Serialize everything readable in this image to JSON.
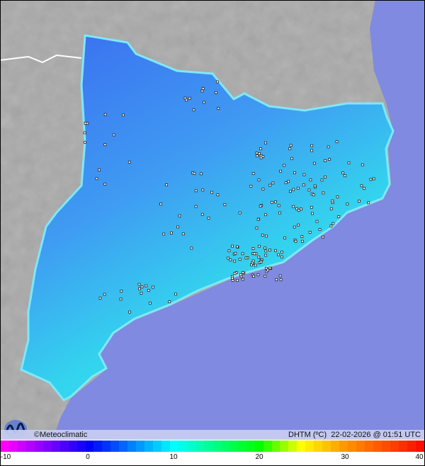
{
  "map": {
    "region": "Catalunya",
    "colors": {
      "sea": "#7f8ae0",
      "terrain": "#a8a8a8",
      "border": "#ffffff",
      "station": "#ffffff"
    }
  },
  "infobar": {
    "brand": "©Meteoclimatic",
    "variable": "DHTM (ºC)",
    "datetime": "22-02-2026 @ 01:51 UTC"
  },
  "legend": {
    "unit": "ºC",
    "min": -10,
    "max": 40,
    "tick_labels": [
      "-10",
      "0",
      "10",
      "20",
      "30",
      "40"
    ],
    "color_stops": [
      {
        "value": -10,
        "color": "#ff00ff"
      },
      {
        "value": -5,
        "color": "#8000ff"
      },
      {
        "value": 0,
        "color": "#0000ff"
      },
      {
        "value": 5,
        "color": "#0080ff"
      },
      {
        "value": 10,
        "color": "#00ffff"
      },
      {
        "value": 20,
        "color": "#00ff00"
      },
      {
        "value": 25,
        "color": "#ffff00"
      },
      {
        "value": 30,
        "color": "#ff9900"
      },
      {
        "value": 40,
        "color": "#ff0000"
      }
    ]
  }
}
